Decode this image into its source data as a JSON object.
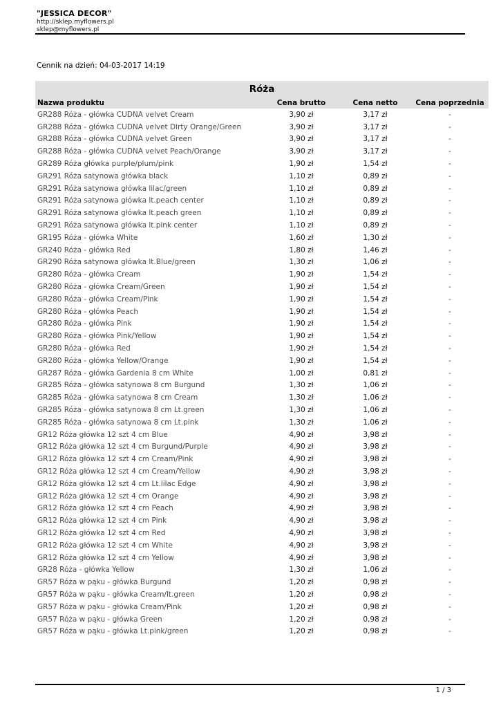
{
  "header": {
    "company": "\"JESSICA DECOR\"",
    "url": "http://sklep.myflowers.pl",
    "email": "sklep@myflowers.pl",
    "date_line": "Cennik na dzień: 04-03-2017 14:19"
  },
  "table": {
    "title": "Róża",
    "columns": [
      "Nazwa produktu",
      "Cena brutto",
      "Cena netto",
      "Cena poprzednia"
    ],
    "rows": [
      {
        "name": "GR288 Róża - główka CUDNA velvet Cream",
        "brutto": "3,90 zł",
        "netto": "3,17 zł",
        "previous": "-"
      },
      {
        "name": "GR288 Róża - główka CUDNA velvet Dirty Orange/Green",
        "brutto": "3,90 zł",
        "netto": "3,17 zł",
        "previous": "-"
      },
      {
        "name": "GR288 Róża - główka CUDNA velvet Green",
        "brutto": "3,90 zł",
        "netto": "3,17 zł",
        "previous": "-"
      },
      {
        "name": "GR288 Róża - główka CUDNA velvet Peach/Orange",
        "brutto": "3,90 zł",
        "netto": "3,17 zł",
        "previous": "-"
      },
      {
        "name": "GR289 Róża główka purple/plum/pink",
        "brutto": "1,90 zł",
        "netto": "1,54 zł",
        "previous": "-"
      },
      {
        "name": "GR291 Róża satynowa główka black",
        "brutto": "1,10 zł",
        "netto": "0,89 zł",
        "previous": "-"
      },
      {
        "name": "GR291 Róża satynowa główka lilac/green",
        "brutto": "1,10 zł",
        "netto": "0,89 zł",
        "previous": "-"
      },
      {
        "name": "GR291 Róża satynowa główka lt.peach center",
        "brutto": "1,10 zł",
        "netto": "0,89 zł",
        "previous": "-"
      },
      {
        "name": "GR291 Róża satynowa główka lt.peach green",
        "brutto": "1,10 zł",
        "netto": "0,89 zł",
        "previous": "-"
      },
      {
        "name": "GR291 Róża satynowa główka lt.pink center",
        "brutto": "1,10 zł",
        "netto": "0,89 zł",
        "previous": "-"
      },
      {
        "name": "GR195 Róża - główka White",
        "brutto": "1,60 zł",
        "netto": "1,30 zł",
        "previous": "-"
      },
      {
        "name": "GR240 Róża - główka Red",
        "brutto": "1,80 zł",
        "netto": "1,46 zł",
        "previous": "-"
      },
      {
        "name": "GR290 Róża satynowa główka lt.Blue/green",
        "brutto": "1,30 zł",
        "netto": "1,06 zł",
        "previous": "-"
      },
      {
        "name": "GR280 Róża - główka Cream",
        "brutto": "1,90 zł",
        "netto": "1,54 zł",
        "previous": "-"
      },
      {
        "name": "GR280 Róża - główka Cream/Green",
        "brutto": "1,90 zł",
        "netto": "1,54 zł",
        "previous": "-"
      },
      {
        "name": "GR280 Róża - główka Cream/Pink",
        "brutto": "1,90 zł",
        "netto": "1,54 zł",
        "previous": "-"
      },
      {
        "name": "GR280 Róża - główka Peach",
        "brutto": "1,90 zł",
        "netto": "1,54 zł",
        "previous": "-"
      },
      {
        "name": "GR280 Róża - główka Pink",
        "brutto": "1,90 zł",
        "netto": "1,54 zł",
        "previous": "-"
      },
      {
        "name": "GR280 Róża - główka Pink/Yellow",
        "brutto": "1,90 zł",
        "netto": "1,54 zł",
        "previous": "-"
      },
      {
        "name": "GR280 Róża - główka Red",
        "brutto": "1,90 zł",
        "netto": "1,54 zł",
        "previous": "-"
      },
      {
        "name": "GR280 Róża - główka Yellow/Orange",
        "brutto": "1,90 zł",
        "netto": "1,54 zł",
        "previous": "-"
      },
      {
        "name": "GR287 Róża - główka Gardenia 8 cm White",
        "brutto": "1,00 zł",
        "netto": "0,81 zł",
        "previous": "-"
      },
      {
        "name": "GR285 Róża - główka satynowa 8 cm Burgund",
        "brutto": "1,30 zł",
        "netto": "1,06 zł",
        "previous": "-"
      },
      {
        "name": "GR285 Róża - główka satynowa 8 cm Cream",
        "brutto": "1,30 zł",
        "netto": "1,06 zł",
        "previous": "-"
      },
      {
        "name": "GR285 Róża - główka satynowa 8 cm Lt.green",
        "brutto": "1,30 zł",
        "netto": "1,06 zł",
        "previous": "-"
      },
      {
        "name": "GR285 Róża - główka satynowa 8 cm Lt.pink",
        "brutto": "1,30 zł",
        "netto": "1,06 zł",
        "previous": "-"
      },
      {
        "name": "GR12 Róża główka 12 szt 4 cm Blue",
        "brutto": "4,90 zł",
        "netto": "3,98 zł",
        "previous": "-"
      },
      {
        "name": "GR12 Róża główka 12 szt 4 cm Burgund/Purple",
        "brutto": "4,90 zł",
        "netto": "3,98 zł",
        "previous": "-"
      },
      {
        "name": "GR12 Róża główka 12 szt 4 cm Cream/Pink",
        "brutto": "4,90 zł",
        "netto": "3,98 zł",
        "previous": "-"
      },
      {
        "name": "GR12 Róża główka 12 szt 4 cm Cream/Yellow",
        "brutto": "4,90 zł",
        "netto": "3,98 zł",
        "previous": "-"
      },
      {
        "name": "GR12 Róża główka 12 szt 4 cm Lt.lilac Edge",
        "brutto": "4,90 zł",
        "netto": "3,98 zł",
        "previous": "-"
      },
      {
        "name": "GR12 Róża główka 12 szt 4 cm Orange",
        "brutto": "4,90 zł",
        "netto": "3,98 zł",
        "previous": "-"
      },
      {
        "name": "GR12 Róża główka 12 szt 4 cm Peach",
        "brutto": "4,90 zł",
        "netto": "3,98 zł",
        "previous": "-"
      },
      {
        "name": "GR12 Róża główka 12 szt 4 cm Pink",
        "brutto": "4,90 zł",
        "netto": "3,98 zł",
        "previous": "-"
      },
      {
        "name": "GR12 Róża główka 12 szt 4 cm Red",
        "brutto": "4,90 zł",
        "netto": "3,98 zł",
        "previous": "-"
      },
      {
        "name": "GR12 Róża główka 12 szt 4 cm White",
        "brutto": "4,90 zł",
        "netto": "3,98 zł",
        "previous": "-"
      },
      {
        "name": "GR12 Róża główka 12 szt 4 cm Yellow",
        "brutto": "4,90 zł",
        "netto": "3,98 zł",
        "previous": "-"
      },
      {
        "name": "GR28 Róża - główka Yellow",
        "brutto": "1,30 zł",
        "netto": "1,06 zł",
        "previous": "-"
      },
      {
        "name": "GR57 Róża w pąku - główka Burgund",
        "brutto": "1,20 zł",
        "netto": "0,98 zł",
        "previous": "-"
      },
      {
        "name": "GR57 Róża w pąku - główka Cream/lt.green",
        "brutto": "1,20 zł",
        "netto": "0,98 zł",
        "previous": "-"
      },
      {
        "name": "GR57 Róża w pąku - główka Cream/Pink",
        "brutto": "1,20 zł",
        "netto": "0,98 zł",
        "previous": "-"
      },
      {
        "name": "GR57 Róża w pąku - główka Green",
        "brutto": "1,20 zł",
        "netto": "0,98 zł",
        "previous": "-"
      },
      {
        "name": "GR57 Róża w pąku - główka Lt.pink/green",
        "brutto": "1,20 zł",
        "netto": "0,98 zł",
        "previous": "-"
      }
    ]
  },
  "footer": {
    "page_number": "1 / 3"
  },
  "colors": {
    "table_header_bg": "#e0e0e0",
    "product_name_text": "#4a4a4a",
    "price_text": "#1a1a1a",
    "rule_color": "#000000"
  }
}
